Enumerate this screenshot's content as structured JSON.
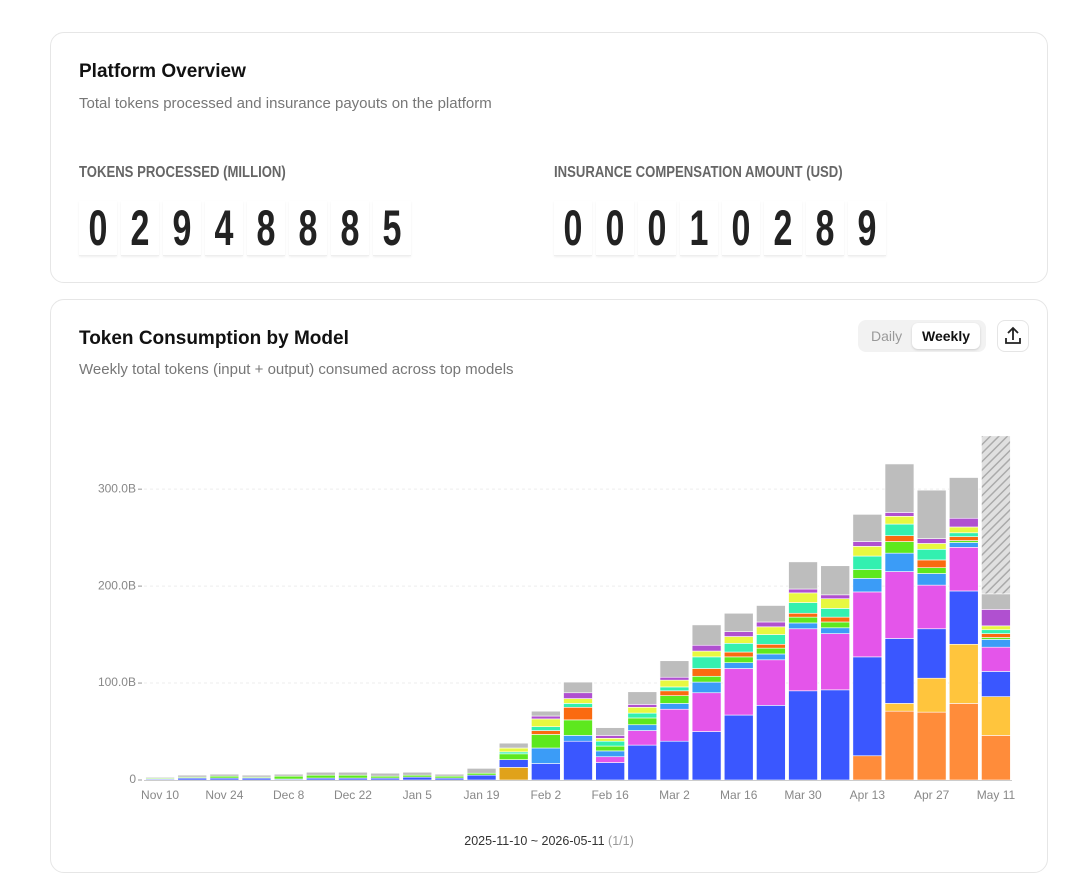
{
  "overview": {
    "title": "Platform Overview",
    "subtitle": "Total tokens processed and insurance payouts on the platform",
    "counters": [
      {
        "label": "TOKENS PROCESSED (MILLION)",
        "digits": [
          "0",
          "2",
          "9",
          "4",
          "8",
          "8",
          "8",
          "5"
        ]
      },
      {
        "label": "INSURANCE COMPENSATION AMOUNT (USD)",
        "digits": [
          "0",
          "0",
          "0",
          "1",
          "0",
          "2",
          "8",
          "9"
        ]
      }
    ]
  },
  "chart_card": {
    "title": "Token Consumption by Model",
    "subtitle": "Weekly total tokens (input + output) consumed across top models",
    "toggle": [
      "Daily",
      "Weekly"
    ],
    "active_toggle": "Weekly",
    "range": "2025-11-10 ~ 2026-05-11",
    "page": "(1/1)"
  },
  "chart_data": {
    "type": "stacked_bar",
    "categories": [
      "Nov 10",
      null,
      "Nov 24",
      null,
      "Dec 8",
      null,
      "Dec 22",
      null,
      "Jan 5",
      null,
      "Jan 19",
      null,
      "Feb 2",
      null,
      "Feb 16",
      null,
      "Mar 2",
      null,
      "Mar 16",
      null,
      "Mar 30",
      null,
      "Apr 13",
      null,
      "Apr 27",
      null,
      "May 11"
    ],
    "ylim": [
      0,
      360
    ],
    "yticks": [
      0,
      {
        "value": 100,
        "label": "100.0B"
      },
      {
        "value": 200,
        "label": "200.0B"
      },
      {
        "value": 300,
        "label": "300.0B"
      }
    ],
    "grid": true,
    "series": [
      {
        "color": "#e0a21a",
        "values": [
          0,
          0,
          0,
          0,
          0,
          0,
          0,
          0,
          0,
          0,
          0,
          13,
          0,
          0,
          0,
          0,
          0,
          0,
          0,
          0,
          0,
          0,
          0,
          0,
          0,
          0,
          0
        ]
      },
      {
        "color": "#ff8c3a",
        "values": [
          0,
          0,
          0,
          0,
          0,
          0,
          0,
          0,
          0,
          0,
          0,
          0,
          0,
          0,
          0,
          0,
          0,
          0,
          0,
          0,
          0,
          0,
          25,
          71,
          70,
          79,
          46
        ]
      },
      {
        "color": "#ffc53d",
        "values": [
          0,
          0,
          0,
          0,
          0,
          0,
          0,
          0,
          0,
          0,
          0,
          0,
          0,
          0,
          0,
          0,
          0,
          0,
          0,
          0,
          0,
          0,
          0,
          8,
          35,
          61,
          40
        ]
      },
      {
        "color": "#3a57ff",
        "values": [
          1,
          2,
          2,
          2,
          1,
          2,
          2,
          2,
          3,
          2,
          5,
          8,
          17,
          40,
          18,
          36,
          40,
          50,
          67,
          77,
          92,
          93,
          102,
          67,
          51,
          55,
          26
        ]
      },
      {
        "color": "#e455ea",
        "values": [
          0,
          0,
          0,
          0,
          0,
          0,
          0,
          0,
          0,
          0,
          0,
          0,
          0,
          0,
          6,
          15,
          33,
          40,
          48,
          47,
          64,
          58,
          67,
          69,
          45,
          45,
          25
        ]
      },
      {
        "color": "#3b9cf7",
        "values": [
          0,
          0,
          0,
          0,
          0,
          0,
          0,
          0,
          0,
          0,
          0,
          0,
          16,
          6,
          6,
          6,
          6,
          11,
          6,
          6,
          6,
          6,
          14,
          19,
          12,
          5,
          8
        ]
      },
      {
        "color": "#5de81e",
        "values": [
          1,
          1,
          2,
          1,
          3,
          3,
          3,
          2,
          2,
          2,
          2,
          6,
          14,
          16,
          5,
          7,
          8,
          6,
          6,
          6,
          6,
          6,
          9,
          12,
          6,
          2,
          2
        ]
      },
      {
        "color": "#fa6a10",
        "values": [
          0,
          0,
          0,
          0,
          0,
          0,
          0,
          0,
          0,
          0,
          0,
          0,
          4,
          13,
          0,
          0,
          5,
          8,
          5,
          4,
          4,
          5,
          0,
          6,
          8,
          4,
          4
        ]
      },
      {
        "color": "#33f0b0",
        "values": [
          0,
          0,
          0,
          0,
          0,
          0,
          0,
          0,
          0,
          0,
          0,
          2,
          4,
          4,
          5,
          5,
          4,
          12,
          9,
          10,
          11,
          9,
          14,
          12,
          11,
          4,
          4
        ]
      },
      {
        "color": "#e8f840",
        "values": [
          0,
          0,
          0,
          0,
          0,
          0,
          0,
          0,
          0,
          0,
          0,
          4,
          8,
          5,
          3,
          6,
          7,
          6,
          7,
          8,
          10,
          10,
          10,
          8,
          6,
          6,
          4
        ]
      },
      {
        "color": "#b050d0",
        "values": [
          0,
          0,
          0,
          0,
          0,
          0,
          0,
          0,
          0,
          0,
          0,
          0,
          3,
          6,
          3,
          3,
          3,
          6,
          5,
          5,
          4,
          4,
          5,
          4,
          5,
          9,
          17
        ]
      },
      {
        "color": "#bdbdbd",
        "values": [
          1,
          2,
          2,
          2,
          2,
          3,
          3,
          3,
          3,
          2,
          5,
          5,
          5,
          11,
          8,
          13,
          17,
          21,
          19,
          17,
          28,
          30,
          28,
          50,
          50,
          42,
          16
        ]
      },
      {
        "color": "#bdbdbd",
        "pattern": "hatched",
        "values": [
          0,
          0,
          0,
          0,
          0,
          0,
          0,
          0,
          0,
          0,
          0,
          0,
          0,
          0,
          0,
          0,
          0,
          0,
          0,
          0,
          0,
          0,
          0,
          0,
          0,
          0,
          163
        ]
      }
    ]
  }
}
